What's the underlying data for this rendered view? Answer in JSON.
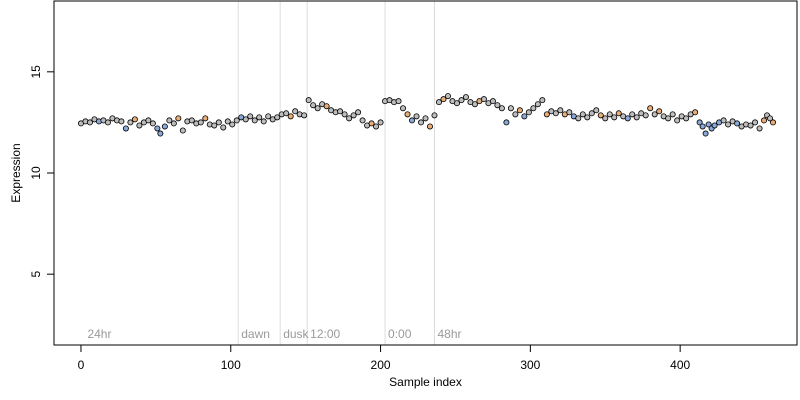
{
  "chart_data": {
    "type": "scatter",
    "xlabel": "Sample index",
    "ylabel": "Expression",
    "xlim": [
      -18,
      478
    ],
    "ylim": [
      1.5,
      18.5
    ],
    "xticks": [
      0,
      100,
      200,
      300,
      400
    ],
    "yticks": [
      5,
      10,
      15
    ],
    "grid": false,
    "point_style": {
      "stroke": "#000000",
      "fill_default": "#bdbdbd"
    },
    "colors": {
      "gray": "#bdbdbd",
      "blue": "#8aa9d8",
      "orange": "#e9ad78"
    },
    "markers": [
      {
        "x": 105,
        "label": "dawn"
      },
      {
        "x": 133,
        "label": "dusk"
      },
      {
        "x": 151,
        "label": "12:00"
      },
      {
        "x": 203,
        "label": "0:00"
      },
      {
        "x": 236,
        "label": "48hr"
      }
    ],
    "marker_line_color": "#dddddd",
    "marker_label_y": 2.0,
    "corner_label": {
      "x": 3,
      "label": "24hr"
    },
    "points": [
      {
        "x": 0,
        "y": 12.45,
        "c": "gray"
      },
      {
        "x": 3,
        "y": 12.55,
        "c": "gray"
      },
      {
        "x": 6,
        "y": 12.5,
        "c": "gray"
      },
      {
        "x": 9,
        "y": 12.65,
        "c": "gray"
      },
      {
        "x": 12,
        "y": 12.55,
        "c": "blue"
      },
      {
        "x": 15,
        "y": 12.6,
        "c": "gray"
      },
      {
        "x": 18,
        "y": 12.5,
        "c": "gray"
      },
      {
        "x": 21,
        "y": 12.7,
        "c": "gray"
      },
      {
        "x": 24,
        "y": 12.6,
        "c": "gray"
      },
      {
        "x": 27,
        "y": 12.55,
        "c": "gray"
      },
      {
        "x": 30,
        "y": 12.2,
        "c": "blue"
      },
      {
        "x": 33,
        "y": 12.5,
        "c": "gray"
      },
      {
        "x": 36,
        "y": 12.65,
        "c": "orange"
      },
      {
        "x": 39,
        "y": 12.35,
        "c": "gray"
      },
      {
        "x": 42,
        "y": 12.5,
        "c": "gray"
      },
      {
        "x": 45,
        "y": 12.6,
        "c": "gray"
      },
      {
        "x": 48,
        "y": 12.45,
        "c": "gray"
      },
      {
        "x": 51,
        "y": 12.2,
        "c": "blue"
      },
      {
        "x": 53,
        "y": 11.95,
        "c": "blue"
      },
      {
        "x": 56,
        "y": 12.3,
        "c": "blue"
      },
      {
        "x": 59,
        "y": 12.6,
        "c": "gray"
      },
      {
        "x": 62,
        "y": 12.45,
        "c": "gray"
      },
      {
        "x": 65,
        "y": 12.7,
        "c": "orange"
      },
      {
        "x": 68,
        "y": 12.1,
        "c": "gray"
      },
      {
        "x": 71,
        "y": 12.55,
        "c": "gray"
      },
      {
        "x": 74,
        "y": 12.6,
        "c": "gray"
      },
      {
        "x": 77,
        "y": 12.45,
        "c": "gray"
      },
      {
        "x": 80,
        "y": 12.5,
        "c": "gray"
      },
      {
        "x": 83,
        "y": 12.7,
        "c": "orange"
      },
      {
        "x": 86,
        "y": 12.4,
        "c": "gray"
      },
      {
        "x": 89,
        "y": 12.35,
        "c": "gray"
      },
      {
        "x": 92,
        "y": 12.5,
        "c": "gray"
      },
      {
        "x": 95,
        "y": 12.25,
        "c": "gray"
      },
      {
        "x": 98,
        "y": 12.55,
        "c": "gray"
      },
      {
        "x": 101,
        "y": 12.4,
        "c": "gray"
      },
      {
        "x": 104,
        "y": 12.6,
        "c": "gray"
      },
      {
        "x": 107,
        "y": 12.75,
        "c": "blue"
      },
      {
        "x": 110,
        "y": 12.65,
        "c": "gray"
      },
      {
        "x": 113,
        "y": 12.8,
        "c": "gray"
      },
      {
        "x": 116,
        "y": 12.6,
        "c": "gray"
      },
      {
        "x": 119,
        "y": 12.75,
        "c": "gray"
      },
      {
        "x": 122,
        "y": 12.55,
        "c": "gray"
      },
      {
        "x": 125,
        "y": 12.8,
        "c": "gray"
      },
      {
        "x": 128,
        "y": 12.65,
        "c": "gray"
      },
      {
        "x": 131,
        "y": 12.75,
        "c": "gray"
      },
      {
        "x": 134,
        "y": 12.9,
        "c": "gray"
      },
      {
        "x": 137,
        "y": 12.95,
        "c": "gray"
      },
      {
        "x": 140,
        "y": 12.8,
        "c": "orange"
      },
      {
        "x": 143,
        "y": 13.05,
        "c": "gray"
      },
      {
        "x": 146,
        "y": 12.9,
        "c": "gray"
      },
      {
        "x": 149,
        "y": 12.85,
        "c": "gray"
      },
      {
        "x": 152,
        "y": 13.6,
        "c": "gray"
      },
      {
        "x": 155,
        "y": 13.35,
        "c": "gray"
      },
      {
        "x": 158,
        "y": 13.2,
        "c": "gray"
      },
      {
        "x": 161,
        "y": 13.4,
        "c": "gray"
      },
      {
        "x": 164,
        "y": 13.3,
        "c": "orange"
      },
      {
        "x": 167,
        "y": 13.1,
        "c": "gray"
      },
      {
        "x": 170,
        "y": 13.0,
        "c": "gray"
      },
      {
        "x": 173,
        "y": 13.05,
        "c": "gray"
      },
      {
        "x": 176,
        "y": 12.9,
        "c": "gray"
      },
      {
        "x": 179,
        "y": 12.7,
        "c": "gray"
      },
      {
        "x": 182,
        "y": 12.85,
        "c": "gray"
      },
      {
        "x": 185,
        "y": 13.0,
        "c": "gray"
      },
      {
        "x": 188,
        "y": 12.6,
        "c": "gray"
      },
      {
        "x": 191,
        "y": 12.35,
        "c": "gray"
      },
      {
        "x": 194,
        "y": 12.45,
        "c": "orange"
      },
      {
        "x": 197,
        "y": 12.3,
        "c": "gray"
      },
      {
        "x": 200,
        "y": 12.5,
        "c": "gray"
      },
      {
        "x": 203,
        "y": 13.55,
        "c": "gray"
      },
      {
        "x": 206,
        "y": 13.6,
        "c": "gray"
      },
      {
        "x": 209,
        "y": 13.5,
        "c": "gray"
      },
      {
        "x": 212,
        "y": 13.55,
        "c": "gray"
      },
      {
        "x": 215,
        "y": 13.2,
        "c": "gray"
      },
      {
        "x": 218,
        "y": 12.9,
        "c": "orange"
      },
      {
        "x": 221,
        "y": 12.6,
        "c": "blue"
      },
      {
        "x": 224,
        "y": 12.8,
        "c": "gray"
      },
      {
        "x": 227,
        "y": 12.5,
        "c": "gray"
      },
      {
        "x": 230,
        "y": 12.7,
        "c": "gray"
      },
      {
        "x": 233,
        "y": 12.3,
        "c": "orange"
      },
      {
        "x": 236,
        "y": 12.85,
        "c": "gray"
      },
      {
        "x": 239,
        "y": 13.5,
        "c": "gray"
      },
      {
        "x": 242,
        "y": 13.65,
        "c": "orange"
      },
      {
        "x": 245,
        "y": 13.8,
        "c": "gray"
      },
      {
        "x": 248,
        "y": 13.55,
        "c": "gray"
      },
      {
        "x": 251,
        "y": 13.45,
        "c": "gray"
      },
      {
        "x": 254,
        "y": 13.6,
        "c": "gray"
      },
      {
        "x": 257,
        "y": 13.75,
        "c": "gray"
      },
      {
        "x": 260,
        "y": 13.5,
        "c": "gray"
      },
      {
        "x": 263,
        "y": 13.4,
        "c": "gray"
      },
      {
        "x": 266,
        "y": 13.55,
        "c": "orange"
      },
      {
        "x": 269,
        "y": 13.65,
        "c": "gray"
      },
      {
        "x": 272,
        "y": 13.45,
        "c": "gray"
      },
      {
        "x": 275,
        "y": 13.55,
        "c": "gray"
      },
      {
        "x": 278,
        "y": 13.35,
        "c": "gray"
      },
      {
        "x": 281,
        "y": 13.2,
        "c": "gray"
      },
      {
        "x": 284,
        "y": 12.5,
        "c": "blue"
      },
      {
        "x": 287,
        "y": 13.2,
        "c": "gray"
      },
      {
        "x": 290,
        "y": 12.9,
        "c": "gray"
      },
      {
        "x": 293,
        "y": 13.1,
        "c": "orange"
      },
      {
        "x": 296,
        "y": 12.8,
        "c": "blue"
      },
      {
        "x": 299,
        "y": 13.0,
        "c": "gray"
      },
      {
        "x": 302,
        "y": 13.2,
        "c": "gray"
      },
      {
        "x": 305,
        "y": 13.4,
        "c": "gray"
      },
      {
        "x": 308,
        "y": 13.6,
        "c": "gray"
      },
      {
        "x": 311,
        "y": 12.9,
        "c": "orange"
      },
      {
        "x": 314,
        "y": 13.05,
        "c": "gray"
      },
      {
        "x": 317,
        "y": 12.95,
        "c": "gray"
      },
      {
        "x": 320,
        "y": 13.1,
        "c": "gray"
      },
      {
        "x": 323,
        "y": 12.9,
        "c": "orange"
      },
      {
        "x": 326,
        "y": 13.0,
        "c": "gray"
      },
      {
        "x": 329,
        "y": 12.8,
        "c": "blue"
      },
      {
        "x": 332,
        "y": 12.7,
        "c": "gray"
      },
      {
        "x": 335,
        "y": 12.9,
        "c": "gray"
      },
      {
        "x": 338,
        "y": 12.75,
        "c": "gray"
      },
      {
        "x": 341,
        "y": 12.95,
        "c": "gray"
      },
      {
        "x": 344,
        "y": 13.1,
        "c": "gray"
      },
      {
        "x": 347,
        "y": 12.85,
        "c": "orange"
      },
      {
        "x": 350,
        "y": 12.7,
        "c": "gray"
      },
      {
        "x": 353,
        "y": 12.9,
        "c": "gray"
      },
      {
        "x": 356,
        "y": 12.75,
        "c": "gray"
      },
      {
        "x": 359,
        "y": 12.95,
        "c": "orange"
      },
      {
        "x": 362,
        "y": 12.8,
        "c": "gray"
      },
      {
        "x": 365,
        "y": 12.7,
        "c": "blue"
      },
      {
        "x": 368,
        "y": 12.9,
        "c": "gray"
      },
      {
        "x": 371,
        "y": 12.75,
        "c": "gray"
      },
      {
        "x": 374,
        "y": 12.95,
        "c": "gray"
      },
      {
        "x": 377,
        "y": 12.85,
        "c": "gray"
      },
      {
        "x": 380,
        "y": 13.2,
        "c": "orange"
      },
      {
        "x": 383,
        "y": 12.9,
        "c": "gray"
      },
      {
        "x": 386,
        "y": 13.05,
        "c": "orange"
      },
      {
        "x": 389,
        "y": 12.8,
        "c": "gray"
      },
      {
        "x": 392,
        "y": 12.7,
        "c": "gray"
      },
      {
        "x": 395,
        "y": 12.9,
        "c": "gray"
      },
      {
        "x": 398,
        "y": 12.6,
        "c": "gray"
      },
      {
        "x": 401,
        "y": 12.8,
        "c": "gray"
      },
      {
        "x": 404,
        "y": 12.7,
        "c": "gray"
      },
      {
        "x": 407,
        "y": 12.9,
        "c": "gray"
      },
      {
        "x": 410,
        "y": 13.0,
        "c": "orange"
      },
      {
        "x": 413,
        "y": 12.5,
        "c": "blue"
      },
      {
        "x": 415,
        "y": 12.3,
        "c": "blue"
      },
      {
        "x": 417,
        "y": 11.95,
        "c": "blue"
      },
      {
        "x": 419,
        "y": 12.4,
        "c": "blue"
      },
      {
        "x": 421,
        "y": 12.2,
        "c": "blue"
      },
      {
        "x": 423,
        "y": 12.35,
        "c": "blue"
      },
      {
        "x": 426,
        "y": 12.5,
        "c": "blue"
      },
      {
        "x": 429,
        "y": 12.6,
        "c": "gray"
      },
      {
        "x": 432,
        "y": 12.4,
        "c": "gray"
      },
      {
        "x": 435,
        "y": 12.55,
        "c": "gray"
      },
      {
        "x": 438,
        "y": 12.45,
        "c": "blue"
      },
      {
        "x": 441,
        "y": 12.3,
        "c": "gray"
      },
      {
        "x": 444,
        "y": 12.4,
        "c": "gray"
      },
      {
        "x": 447,
        "y": 12.35,
        "c": "gray"
      },
      {
        "x": 450,
        "y": 12.5,
        "c": "gray"
      },
      {
        "x": 453,
        "y": 12.2,
        "c": "gray"
      },
      {
        "x": 456,
        "y": 12.6,
        "c": "orange"
      },
      {
        "x": 458,
        "y": 12.85,
        "c": "gray"
      },
      {
        "x": 460,
        "y": 12.7,
        "c": "gray"
      },
      {
        "x": 462,
        "y": 12.5,
        "c": "orange"
      }
    ]
  }
}
